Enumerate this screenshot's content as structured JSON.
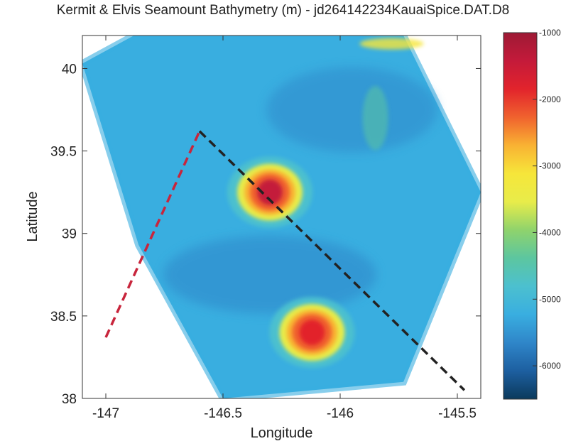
{
  "chart_data": {
    "type": "heatmap",
    "title": "Kermit & Elvis Seamount Bathymetry (m) - jd264142234KauaiSpice.DAT.D8",
    "xlabel": "Longitude",
    "ylabel": "Latitude",
    "xlim": [
      -147.1,
      -145.4
    ],
    "ylim": [
      38.0,
      40.2
    ],
    "x_ticks": [
      -147,
      -146.5,
      -146,
      -145.5
    ],
    "x_tick_labels": [
      "-147",
      "-146.5",
      "-146",
      "-145.5"
    ],
    "y_ticks": [
      38,
      38.5,
      39,
      39.5,
      40
    ],
    "y_tick_labels": [
      "38",
      "38.5",
      "39",
      "39.5",
      "40"
    ],
    "grid": false,
    "colorbar": {
      "range": [
        -6500,
        -1000
      ],
      "ticks": [
        -1000,
        -2000,
        -3000,
        -4000,
        -5000,
        -6000
      ],
      "tick_labels": [
        "-1000",
        "-2000",
        "-3000",
        "-4000",
        "-5000",
        "-6000"
      ],
      "colormap": [
        "#0b3a5c",
        "#1d5fa0",
        "#2f86c9",
        "#39aee0",
        "#4cc0cf",
        "#5cc6a0",
        "#8fd36c",
        "#e8ec4a",
        "#f6e63a",
        "#f9b233",
        "#f0622e",
        "#e2242c",
        "#c41a3a",
        "#9e1a35"
      ]
    },
    "survey_polygon": [
      [
        -146.88,
        40.2
      ],
      [
        -145.73,
        40.2
      ],
      [
        -145.4,
        39.25
      ],
      [
        -145.73,
        38.1
      ],
      [
        -146.5,
        38.0
      ],
      [
        -146.86,
        38.93
      ],
      [
        -147.1,
        40.03
      ]
    ],
    "seamounts": [
      {
        "lon": -146.3,
        "lat": 39.25,
        "depth_m": -1600
      },
      {
        "lon": -146.12,
        "lat": 38.4,
        "depth_m": -1800
      }
    ],
    "track_lines": [
      {
        "color": "#c8253c",
        "points": [
          [
            -147.0,
            38.37
          ],
          [
            -146.6,
            39.62
          ]
        ]
      },
      {
        "color": "#222222",
        "points": [
          [
            -146.6,
            39.62
          ],
          [
            -145.47,
            38.05
          ]
        ]
      }
    ]
  }
}
